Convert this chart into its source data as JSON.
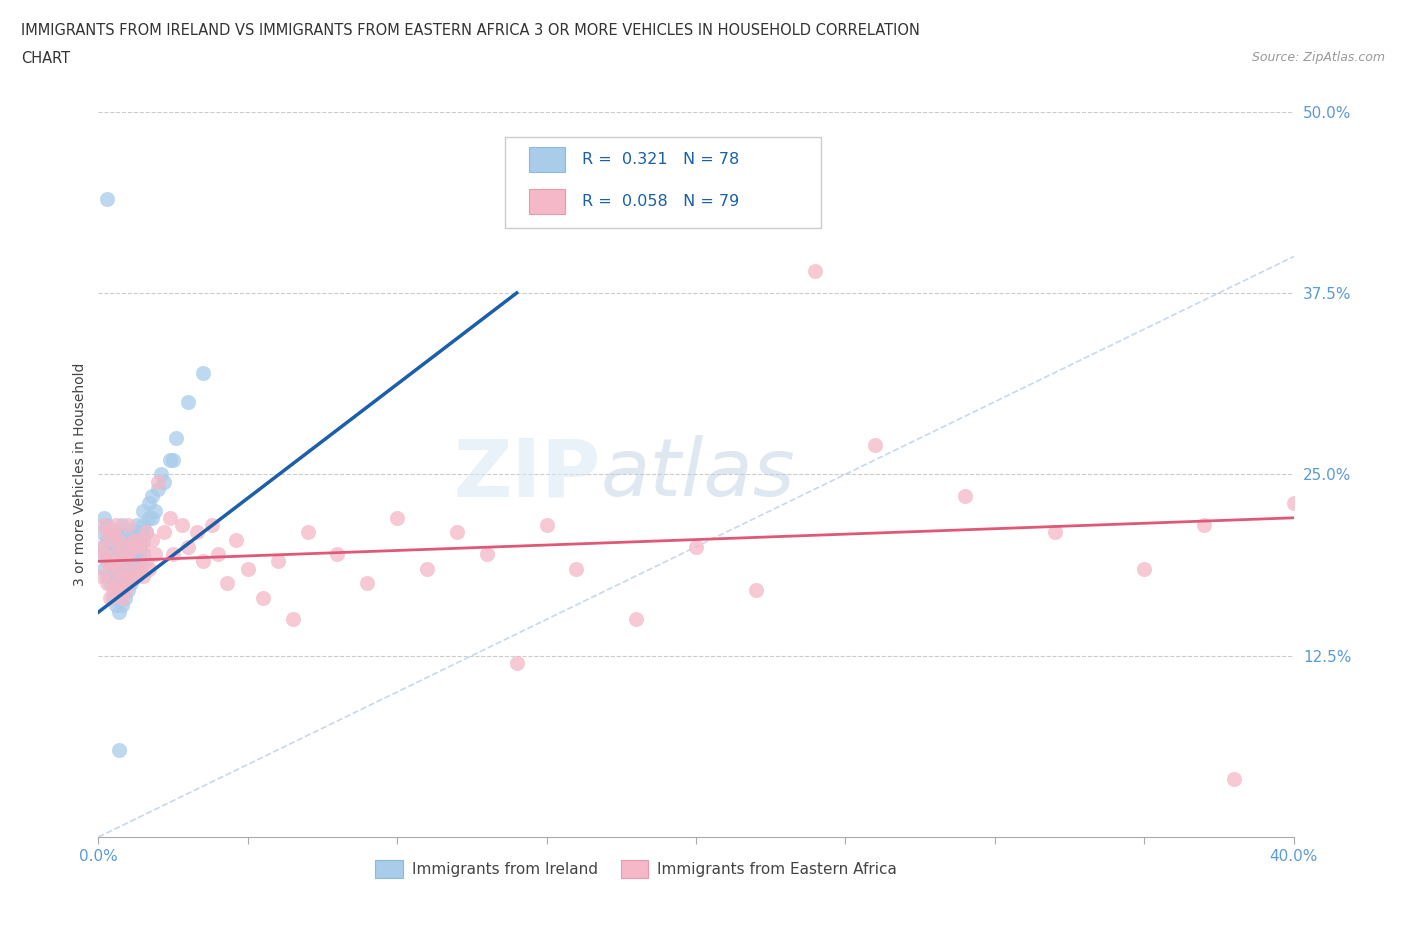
{
  "title_line1": "IMMIGRANTS FROM IRELAND VS IMMIGRANTS FROM EASTERN AFRICA 3 OR MORE VEHICLES IN HOUSEHOLD CORRELATION",
  "title_line2": "CHART",
  "source_text": "Source: ZipAtlas.com",
  "ylabel": "3 or more Vehicles in Household",
  "xlim": [
    0.0,
    0.4
  ],
  "ylim": [
    0.0,
    0.5
  ],
  "xticks": [
    0.0,
    0.05,
    0.1,
    0.15,
    0.2,
    0.25,
    0.3,
    0.35,
    0.4
  ],
  "xticklabels": [
    "0.0%",
    "",
    "",
    "",
    "",
    "",
    "",
    "",
    "40.0%"
  ],
  "yticks": [
    0.0,
    0.125,
    0.25,
    0.375,
    0.5
  ],
  "yticklabels": [
    "",
    "12.5%",
    "25.0%",
    "37.5%",
    "50.0%"
  ],
  "ireland_color": "#A8CCEA",
  "ireland_color_line": "#1B5FA8",
  "eastern_africa_color": "#F4B8C8",
  "eastern_africa_color_line": "#E05878",
  "ireland_R": 0.321,
  "ireland_N": 78,
  "eastern_africa_R": 0.058,
  "eastern_africa_N": 79,
  "ireland_label": "Immigrants from Ireland",
  "eastern_africa_label": "Immigrants from Eastern Africa",
  "watermark_zip": "ZIP",
  "watermark_atlas": "atlas",
  "ireland_x": [
    0.001,
    0.001,
    0.002,
    0.002,
    0.002,
    0.003,
    0.003,
    0.003,
    0.003,
    0.004,
    0.004,
    0.004,
    0.004,
    0.005,
    0.005,
    0.005,
    0.005,
    0.006,
    0.006,
    0.006,
    0.006,
    0.006,
    0.007,
    0.007,
    0.007,
    0.007,
    0.007,
    0.008,
    0.008,
    0.008,
    0.008,
    0.008,
    0.008,
    0.009,
    0.009,
    0.009,
    0.009,
    0.009,
    0.01,
    0.01,
    0.01,
    0.01,
    0.01,
    0.011,
    0.011,
    0.011,
    0.011,
    0.012,
    0.012,
    0.012,
    0.012,
    0.013,
    0.013,
    0.013,
    0.013,
    0.014,
    0.014,
    0.014,
    0.015,
    0.015,
    0.015,
    0.015,
    0.016,
    0.017,
    0.017,
    0.018,
    0.018,
    0.019,
    0.02,
    0.021,
    0.022,
    0.024,
    0.025,
    0.026,
    0.03,
    0.035,
    0.003,
    0.007
  ],
  "ireland_y": [
    0.195,
    0.21,
    0.185,
    0.2,
    0.22,
    0.18,
    0.195,
    0.205,
    0.215,
    0.175,
    0.19,
    0.2,
    0.21,
    0.165,
    0.18,
    0.195,
    0.205,
    0.16,
    0.175,
    0.185,
    0.195,
    0.21,
    0.155,
    0.17,
    0.18,
    0.19,
    0.205,
    0.16,
    0.17,
    0.18,
    0.19,
    0.2,
    0.215,
    0.165,
    0.175,
    0.185,
    0.195,
    0.205,
    0.17,
    0.18,
    0.19,
    0.2,
    0.21,
    0.175,
    0.185,
    0.195,
    0.205,
    0.18,
    0.19,
    0.2,
    0.21,
    0.185,
    0.195,
    0.205,
    0.215,
    0.19,
    0.2,
    0.21,
    0.195,
    0.205,
    0.215,
    0.225,
    0.21,
    0.22,
    0.23,
    0.22,
    0.235,
    0.225,
    0.24,
    0.25,
    0.245,
    0.26,
    0.26,
    0.275,
    0.3,
    0.32,
    0.44,
    0.06
  ],
  "eastern_africa_x": [
    0.001,
    0.001,
    0.002,
    0.002,
    0.003,
    0.003,
    0.003,
    0.004,
    0.004,
    0.004,
    0.005,
    0.005,
    0.005,
    0.006,
    0.006,
    0.006,
    0.007,
    0.007,
    0.007,
    0.008,
    0.008,
    0.008,
    0.009,
    0.009,
    0.01,
    0.01,
    0.01,
    0.011,
    0.011,
    0.012,
    0.012,
    0.013,
    0.013,
    0.014,
    0.014,
    0.015,
    0.015,
    0.016,
    0.016,
    0.017,
    0.018,
    0.019,
    0.02,
    0.022,
    0.024,
    0.025,
    0.028,
    0.03,
    0.033,
    0.035,
    0.038,
    0.04,
    0.043,
    0.046,
    0.05,
    0.055,
    0.06,
    0.065,
    0.07,
    0.08,
    0.09,
    0.1,
    0.11,
    0.12,
    0.13,
    0.14,
    0.15,
    0.16,
    0.18,
    0.2,
    0.22,
    0.24,
    0.26,
    0.29,
    0.32,
    0.35,
    0.37,
    0.4,
    0.38
  ],
  "eastern_africa_y": [
    0.2,
    0.18,
    0.215,
    0.195,
    0.175,
    0.19,
    0.21,
    0.165,
    0.185,
    0.205,
    0.17,
    0.19,
    0.21,
    0.175,
    0.195,
    0.215,
    0.17,
    0.185,
    0.205,
    0.165,
    0.18,
    0.2,
    0.17,
    0.19,
    0.175,
    0.195,
    0.215,
    0.18,
    0.2,
    0.185,
    0.205,
    0.18,
    0.2,
    0.185,
    0.205,
    0.18,
    0.2,
    0.19,
    0.21,
    0.185,
    0.205,
    0.195,
    0.245,
    0.21,
    0.22,
    0.195,
    0.215,
    0.2,
    0.21,
    0.19,
    0.215,
    0.195,
    0.175,
    0.205,
    0.185,
    0.165,
    0.19,
    0.15,
    0.21,
    0.195,
    0.175,
    0.22,
    0.185,
    0.21,
    0.195,
    0.12,
    0.215,
    0.185,
    0.15,
    0.2,
    0.17,
    0.39,
    0.27,
    0.235,
    0.21,
    0.185,
    0.215,
    0.23,
    0.04
  ],
  "ireland_trend_x": [
    0.0,
    0.14
  ],
  "ireland_trend_y": [
    0.155,
    0.375
  ],
  "eastern_trend_x": [
    0.0,
    0.4
  ],
  "eastern_trend_y": [
    0.19,
    0.22
  ]
}
